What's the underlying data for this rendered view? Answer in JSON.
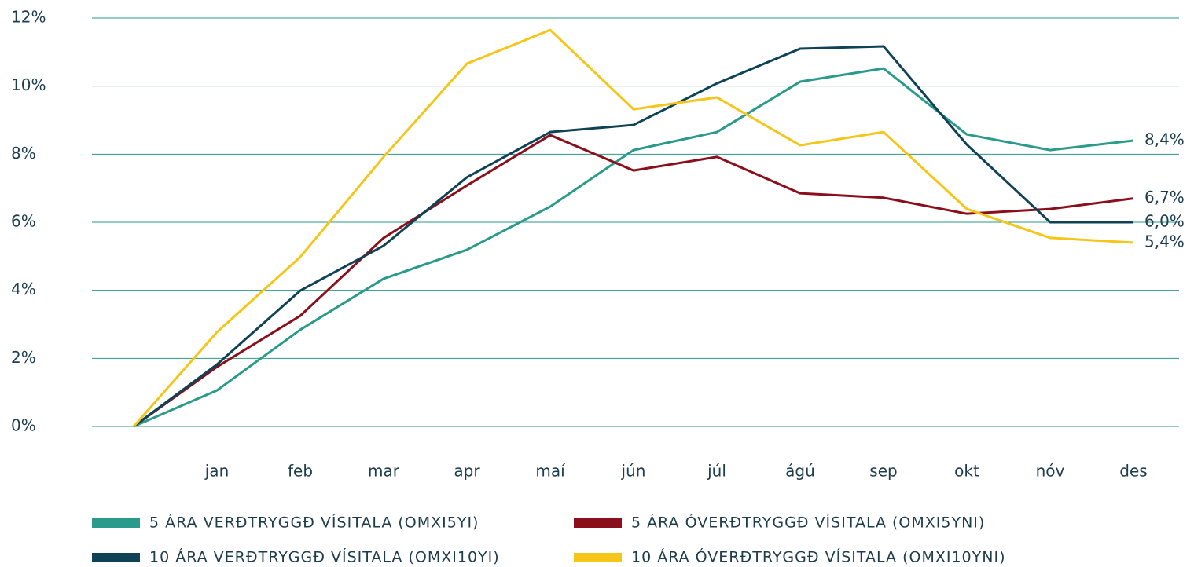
{
  "chart_data": {
    "type": "line",
    "categories": [
      null,
      "jan",
      "feb",
      "mar",
      "apr",
      "maí",
      "jún",
      "júl",
      "ágú",
      "sep",
      "okt",
      "nóv",
      "des"
    ],
    "series": [
      {
        "name": "5 ÁRA VERÐTRYGGÐ VÍSITALA (OMXI5YI)",
        "color": "#2a9a8a",
        "values": [
          0,
          1.06,
          2.84,
          4.34,
          5.19,
          6.46,
          8.12,
          8.65,
          10.13,
          10.52,
          8.58,
          8.12,
          8.4
        ],
        "value_labels": [
          null,
          null,
          null,
          null,
          null,
          null,
          null,
          null,
          null,
          null,
          null,
          null,
          "8,4%"
        ]
      },
      {
        "name": "5 ÁRA ÓVERÐTRYGGÐ VÍSITALA (OMXI5YNI)",
        "color": "#8a0f1a",
        "values": [
          0,
          1.75,
          3.25,
          5.54,
          7.08,
          8.56,
          7.52,
          7.92,
          6.85,
          6.72,
          6.25,
          6.39,
          6.7
        ],
        "value_labels": [
          null,
          null,
          null,
          null,
          null,
          null,
          null,
          null,
          null,
          null,
          null,
          null,
          "6,7%"
        ]
      },
      {
        "name": "10 ÁRA VERÐTRYGGÐ VÍSITALA (OMXI10YI)",
        "color": "#0f4256",
        "values": [
          0,
          1.82,
          3.99,
          5.31,
          7.32,
          8.65,
          8.86,
          10.08,
          11.1,
          11.17,
          8.28,
          6.0,
          6.0
        ],
        "value_labels": [
          null,
          null,
          null,
          null,
          null,
          null,
          null,
          null,
          null,
          null,
          null,
          null,
          "6,0%"
        ]
      },
      {
        "name": "10 ÁRA ÓVERÐTRYGGÐ VÍSITALA (OMXI10YNI)",
        "color": "#f5c518",
        "values": [
          0,
          2.77,
          4.98,
          7.92,
          10.66,
          11.65,
          9.32,
          9.67,
          8.26,
          8.65,
          6.39,
          5.54,
          5.4
        ],
        "value_labels": [
          null,
          null,
          null,
          null,
          null,
          null,
          null,
          null,
          null,
          null,
          null,
          null,
          "5,4%"
        ]
      }
    ],
    "ylim": [
      0,
      12
    ],
    "yticks": [
      {
        "value": 0,
        "label": "0%"
      },
      {
        "value": 2,
        "label": "2%"
      },
      {
        "value": 4,
        "label": "4%"
      },
      {
        "value": 6,
        "label": "6%"
      },
      {
        "value": 8,
        "label": "8%"
      },
      {
        "value": 10,
        "label": "10%"
      },
      {
        "value": 12,
        "label": "12%"
      }
    ],
    "grid": true
  }
}
